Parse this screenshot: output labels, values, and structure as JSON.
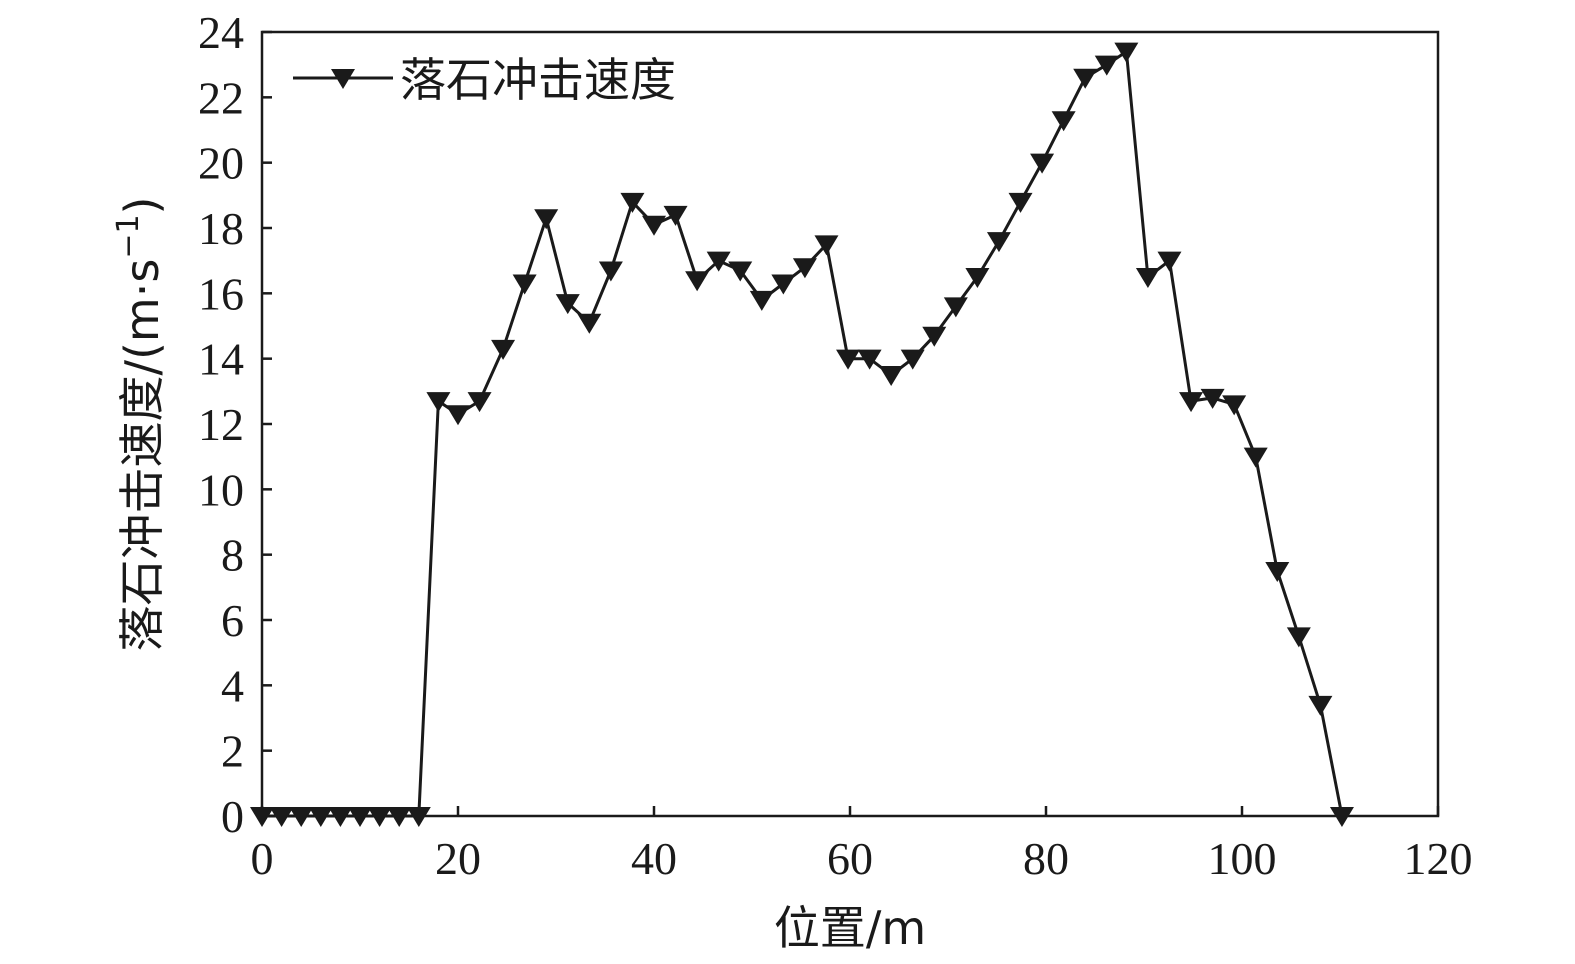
{
  "chart_data": {
    "type": "line",
    "title": "",
    "xlabel": "位置/m",
    "ylabel_main": "落石冲击速度/(m·s",
    "ylabel_sup": "−1",
    "ylabel_close": ")",
    "xlim": [
      0,
      120
    ],
    "ylim": [
      0,
      24
    ],
    "xticks": [
      "0",
      "20",
      "40",
      "60",
      "80",
      "100",
      "120"
    ],
    "yticks": [
      "0",
      "2",
      "4",
      "6",
      "8",
      "10",
      "12",
      "14",
      "16",
      "18",
      "20",
      "22",
      "24"
    ],
    "legend_position": "top-left",
    "grid": false,
    "series": [
      {
        "name": "落石冲击速度",
        "color": "#1a1a1a",
        "marker": "triangle-down",
        "points": [
          [
            0,
            0
          ],
          [
            2,
            0
          ],
          [
            4,
            0
          ],
          [
            6,
            0
          ],
          [
            8,
            0
          ],
          [
            10,
            0
          ],
          [
            12,
            0
          ],
          [
            14,
            0
          ],
          [
            16,
            0
          ],
          [
            18,
            12.7
          ],
          [
            20,
            12.3
          ],
          [
            22.2,
            12.7
          ],
          [
            24.6,
            14.3
          ],
          [
            26.8,
            16.3
          ],
          [
            29,
            18.3
          ],
          [
            31.2,
            15.7
          ],
          [
            33.4,
            15.1
          ],
          [
            35.6,
            16.7
          ],
          [
            37.8,
            18.8
          ],
          [
            40,
            18.1
          ],
          [
            42.2,
            18.4
          ],
          [
            44.4,
            16.4
          ],
          [
            46.6,
            17.0
          ],
          [
            48.8,
            16.7
          ],
          [
            51,
            15.8
          ],
          [
            53.2,
            16.3
          ],
          [
            55.4,
            16.8
          ],
          [
            57.6,
            17.5
          ],
          [
            59.8,
            14.0
          ],
          [
            62,
            14.0
          ],
          [
            64.2,
            13.5
          ],
          [
            66.4,
            14.0
          ],
          [
            68.6,
            14.7
          ],
          [
            70.8,
            15.6
          ],
          [
            73,
            16.5
          ],
          [
            75.2,
            17.6
          ],
          [
            77.4,
            18.8
          ],
          [
            79.6,
            20.0
          ],
          [
            81.8,
            21.3
          ],
          [
            84,
            22.6
          ],
          [
            86.2,
            23.0
          ],
          [
            88.2,
            23.4
          ],
          [
            90.4,
            16.5
          ],
          [
            92.6,
            17.0
          ],
          [
            94.8,
            12.7
          ],
          [
            97,
            12.8
          ],
          [
            99.2,
            12.6
          ],
          [
            101.4,
            11.0
          ],
          [
            103.6,
            7.5
          ],
          [
            105.8,
            5.5
          ],
          [
            108,
            3.4
          ],
          [
            110.2,
            0
          ]
        ]
      }
    ]
  }
}
